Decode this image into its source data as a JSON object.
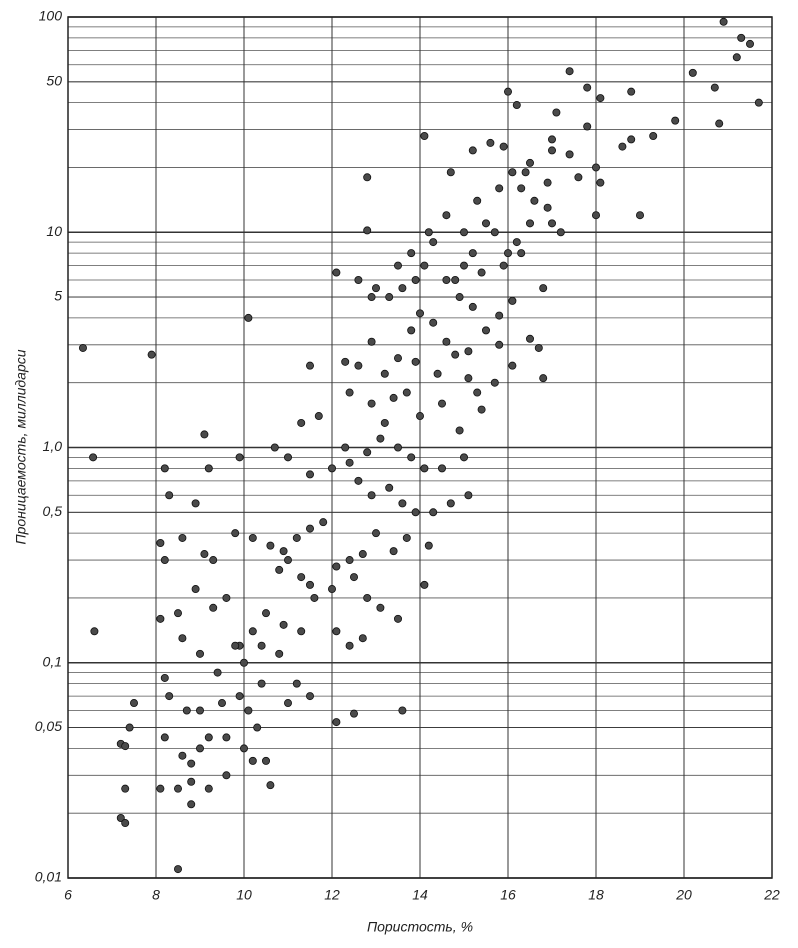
{
  "chart_data": {
    "type": "scatter",
    "x_label": "Пористость, %",
    "y_label": "Проницаемость,  миллидарси",
    "xlim": [
      6,
      22
    ],
    "xticks": [
      6,
      8,
      10,
      12,
      14,
      16,
      18,
      20,
      22
    ],
    "ylim": [
      0.01,
      100
    ],
    "log_y": true,
    "minor_grid": true,
    "grid": true,
    "yticks": [
      {
        "value": 0.01,
        "label": "0,01"
      },
      {
        "value": 0.05,
        "label": "0,05"
      },
      {
        "value": 0.1,
        "label": "0,1"
      },
      {
        "value": 0.5,
        "label": "0,5"
      },
      {
        "value": 1,
        "label": "1,0"
      },
      5,
      10,
      50,
      100
    ],
    "color": "#4a4a4a",
    "x": [
      20.9,
      21.3,
      21.5,
      21.2,
      21.7,
      20.2,
      20.7,
      20.8,
      19.8,
      19.3,
      18.8,
      18.8,
      18.6,
      18.1,
      18.0,
      18.1,
      18.0,
      19.0,
      17.8,
      17.8,
      17.4,
      17.4,
      17.6,
      17.1,
      17.0,
      16.9,
      16.0,
      16.2,
      15.9,
      15.6,
      15.2,
      14.7,
      14.1,
      12.8,
      16.1,
      16.4,
      16.3,
      16.6,
      16.9,
      17.2,
      17.0,
      16.5,
      16.2,
      16.0,
      15.7,
      15.5,
      15.2,
      15.0,
      14.8,
      14.3,
      14.1,
      13.9,
      13.6,
      13.3,
      12.9,
      12.6,
      12.1,
      12.8,
      13.5,
      13.0,
      16.8,
      16.1,
      15.8,
      16.5,
      16.7,
      16.8,
      16.1,
      15.7,
      15.3,
      15.1,
      14.8,
      14.6,
      14.3,
      14.0,
      13.8,
      13.5,
      13.2,
      12.9,
      12.6,
      12.3,
      11.5,
      12.4,
      12.9,
      13.4,
      13.7,
      14.0,
      14.5,
      14.9,
      15.4,
      15.0,
      14.5,
      14.1,
      13.8,
      13.5,
      13.1,
      12.8,
      12.4,
      12.0,
      11.5,
      11.0,
      10.7,
      11.3,
      11.7,
      12.3,
      12.6,
      12.9,
      13.3,
      13.6,
      13.9,
      14.3,
      14.7,
      15.1,
      14.2,
      14.1,
      13.7,
      13.4,
      13.0,
      12.7,
      12.4,
      12.1,
      11.8,
      11.5,
      11.2,
      10.9,
      10.6,
      10.2,
      9.8,
      9.3,
      9.1,
      8.6,
      8.2,
      8.1,
      8.3,
      8.9,
      9.2,
      9.9,
      10.1,
      7.9,
      9.1,
      8.2,
      11.0,
      11.3,
      11.6,
      12.0,
      12.5,
      12.8,
      13.1,
      13.5,
      12.7,
      12.4,
      12.1,
      11.3,
      10.9,
      10.5,
      10.2,
      9.9,
      9.6,
      9.3,
      8.9,
      8.5,
      8.1,
      8.6,
      9.0,
      9.4,
      9.8,
      10.0,
      10.4,
      10.8,
      11.2,
      11.5,
      11.0,
      10.4,
      9.9,
      9.5,
      9.0,
      8.7,
      8.3,
      8.2,
      7.5,
      7.4,
      7.2,
      7.3,
      8.2,
      8.6,
      8.8,
      9.0,
      9.2,
      9.6,
      10.0,
      10.3,
      10.1,
      10.5,
      10.6,
      10.2,
      9.6,
      9.2,
      8.8,
      8.5,
      8.1,
      7.3,
      7.2,
      7.3,
      8.8,
      8.5,
      13.6,
      12.1,
      12.5,
      11.5,
      10.8,
      15.5,
      15.8,
      15.2,
      14.9,
      14.6,
      15.4,
      15.9,
      16.3,
      15.0,
      14.6,
      14.2,
      13.8,
      15.3,
      15.8,
      16.5,
      17.0,
      15.1,
      14.4,
      13.9,
      13.2,
      6.34,
      6.57,
      6.6
    ],
    "values": [
      95,
      80,
      75,
      65,
      40,
      55,
      47,
      32,
      33,
      28,
      45,
      27,
      25,
      42,
      20,
      17,
      12,
      12,
      47,
      31,
      56,
      23,
      18,
      36,
      24,
      17,
      45,
      39,
      25,
      26,
      24,
      19,
      28,
      18,
      19,
      19,
      16,
      14,
      13,
      10,
      11,
      11,
      9,
      8,
      10,
      11,
      8,
      7,
      6,
      9,
      7,
      6,
      5.5,
      5,
      5,
      6,
      6.5,
      10.2,
      7,
      5.5,
      5.5,
      4.8,
      4.1,
      3.2,
      2.9,
      2.1,
      2.4,
      2.0,
      1.8,
      2.1,
      2.7,
      3.1,
      3.8,
      4.2,
      3.5,
      2.6,
      2.2,
      3.1,
      2.4,
      2.5,
      2.4,
      1.8,
      1.6,
      1.7,
      1.8,
      1.4,
      1.6,
      1.2,
      1.5,
      0.9,
      0.8,
      0.8,
      0.9,
      1.0,
      1.1,
      0.95,
      0.85,
      0.8,
      0.75,
      0.9,
      1.0,
      1.3,
      1.4,
      1.0,
      0.7,
      0.6,
      0.65,
      0.55,
      0.5,
      0.5,
      0.55,
      0.6,
      0.35,
      0.23,
      0.38,
      0.33,
      0.4,
      0.32,
      0.3,
      0.28,
      0.45,
      0.42,
      0.38,
      0.33,
      0.35,
      0.38,
      0.4,
      0.3,
      0.32,
      0.38,
      0.3,
      0.36,
      0.6,
      0.55,
      0.8,
      0.9,
      4.0,
      2.7,
      1.15,
      0.8,
      0.3,
      0.25,
      0.2,
      0.22,
      0.25,
      0.2,
      0.18,
      0.16,
      0.13,
      0.12,
      0.14,
      0.14,
      0.15,
      0.17,
      0.14,
      0.12,
      0.2,
      0.18,
      0.22,
      0.17,
      0.16,
      0.13,
      0.11,
      0.09,
      0.12,
      0.1,
      0.12,
      0.11,
      0.08,
      0.07,
      0.065,
      0.08,
      0.07,
      0.065,
      0.06,
      0.06,
      0.07,
      0.085,
      0.065,
      0.05,
      0.042,
      0.041,
      0.045,
      0.037,
      0.034,
      0.04,
      0.045,
      0.045,
      0.04,
      0.05,
      0.06,
      0.035,
      0.027,
      0.035,
      0.03,
      0.026,
      0.028,
      0.026,
      0.026,
      0.026,
      0.019,
      0.018,
      0.022,
      0.011,
      0.06,
      0.053,
      0.058,
      0.23,
      0.27,
      3.5,
      3.0,
      4.5,
      5.0,
      6,
      6.5,
      7,
      8,
      10,
      12,
      10,
      8,
      14,
      16,
      21,
      27,
      2.8,
      2.2,
      2.5,
      1.3,
      2.9,
      0.9,
      0.14
    ]
  }
}
